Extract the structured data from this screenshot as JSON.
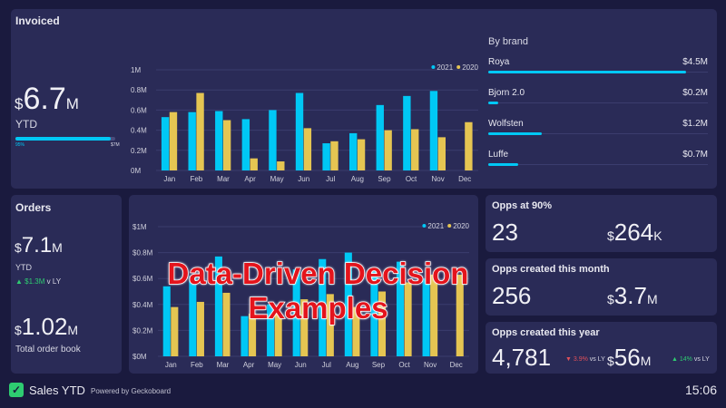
{
  "invoiced": {
    "title": "Invoiced",
    "currency": "$",
    "value": "6.7",
    "unit": "M",
    "period": "YTD",
    "progress_label": "95%",
    "progress_target": "$7M",
    "progress": 0.95
  },
  "chart_data": [
    {
      "type": "bar",
      "categories": [
        "Jan",
        "Feb",
        "Mar",
        "Apr",
        "May",
        "Jun",
        "Jul",
        "Aug",
        "Sep",
        "Oct",
        "Nov",
        "Dec"
      ],
      "series": [
        {
          "name": "2021",
          "color": "#00c8f5",
          "values": [
            0.53,
            0.58,
            0.59,
            0.51,
            0.6,
            0.77,
            0.27,
            0.37,
            0.65,
            0.74,
            0.79,
            null
          ]
        },
        {
          "name": "2020",
          "color": "#e5c552",
          "values": [
            0.58,
            0.77,
            0.5,
            0.12,
            0.09,
            0.42,
            0.29,
            0.31,
            0.4,
            0.41,
            0.33,
            0.48
          ]
        }
      ],
      "ylim": [
        0,
        1
      ],
      "yticks": [
        "0M",
        "0.2M",
        "0.4M",
        "0.6M",
        "0.8M",
        "1M"
      ],
      "legend": "top-right",
      "grid": true
    },
    {
      "type": "bar",
      "categories": [
        "Jan",
        "Feb",
        "Mar",
        "Apr",
        "May",
        "Jun",
        "Jul",
        "Aug",
        "Sep",
        "Oct",
        "Nov",
        "Dec"
      ],
      "series": [
        {
          "name": "2021",
          "color": "#00c8f5",
          "values": [
            0.54,
            0.62,
            0.77,
            0.31,
            0.4,
            0.67,
            0.75,
            0.8,
            0.68,
            0.73,
            0.6,
            null
          ]
        },
        {
          "name": "2020",
          "color": "#e5c552",
          "values": [
            0.38,
            0.42,
            0.49,
            0.33,
            0.33,
            0.44,
            0.48,
            0.38,
            0.5,
            0.57,
            0.63,
            0.63
          ]
        }
      ],
      "ylim": [
        0,
        1
      ],
      "yticks": [
        "$0M",
        "$0.2M",
        "$0.4M",
        "$0.6M",
        "$0.8M",
        "$1M"
      ],
      "legend": "top-right",
      "grid": true
    }
  ],
  "brands": {
    "title": "By brand",
    "items": [
      {
        "name": "Roya",
        "value": "$4.5M",
        "fraction": 0.9
      },
      {
        "name": "Bjorn 2.0",
        "value": "$0.2M",
        "fraction": 0.045
      },
      {
        "name": "Wolfsten",
        "value": "$1.2M",
        "fraction": 0.245
      },
      {
        "name": "Luffe",
        "value": "$0.7M",
        "fraction": 0.135
      }
    ]
  },
  "orders": {
    "title": "Orders",
    "currency": "$",
    "value": "7.1",
    "unit": "M",
    "period": "YTD",
    "delta": "$1.3M",
    "delta_suffix": "v LY",
    "book_value": "1.02",
    "book_unit": "M",
    "book_label": "Total order book"
  },
  "cards": [
    {
      "title": "Opps at 90%",
      "count": "23",
      "amount": "264",
      "amount_unit": "K"
    },
    {
      "title": "Opps created this month",
      "count": "256",
      "amount": "3.7",
      "amount_unit": "M"
    },
    {
      "title": "Opps created this year",
      "count": "4,781",
      "count_delta": "3.9%",
      "count_delta_suffix": "vs LY",
      "amount": "56",
      "amount_unit": "M",
      "amount_delta": "14%",
      "amount_delta_suffix": "vs LY"
    }
  ],
  "footer": {
    "title": "Sales YTD",
    "powered": "Powered by Geckoboard",
    "time": "15:06"
  },
  "overlay": "Data-Driven Decision Examples",
  "colors": {
    "background": "#1a1a3e",
    "panel": "#2a2b57",
    "accent": "#00c8f5",
    "secondary": "#e5c552",
    "up": "#2ecc71",
    "down": "#e0505a"
  }
}
